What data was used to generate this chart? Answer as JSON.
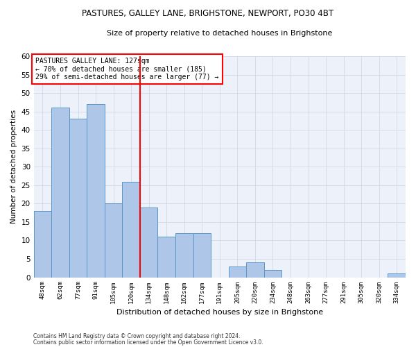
{
  "title": "PASTURES, GALLEY LANE, BRIGHSTONE, NEWPORT, PO30 4BT",
  "subtitle": "Size of property relative to detached houses in Brighstone",
  "xlabel": "Distribution of detached houses by size in Brighstone",
  "ylabel": "Number of detached properties",
  "categories": [
    "48sqm",
    "62sqm",
    "77sqm",
    "91sqm",
    "105sqm",
    "120sqm",
    "134sqm",
    "148sqm",
    "162sqm",
    "177sqm",
    "191sqm",
    "205sqm",
    "220sqm",
    "234sqm",
    "248sqm",
    "263sqm",
    "277sqm",
    "291sqm",
    "305sqm",
    "320sqm",
    "334sqm"
  ],
  "values": [
    18,
    46,
    43,
    47,
    20,
    26,
    19,
    11,
    12,
    12,
    0,
    3,
    4,
    2,
    0,
    0,
    0,
    0,
    0,
    0,
    1
  ],
  "bar_color": "#aec6e8",
  "bar_edge_color": "#5a96c8",
  "grid_color": "#d0d8e8",
  "background_color": "#edf2fa",
  "vline_x": 5.5,
  "vline_color": "red",
  "annotation_text": "PASTURES GALLEY LANE: 127sqm\n← 70% of detached houses are smaller (185)\n29% of semi-detached houses are larger (77) →",
  "annotation_box_color": "white",
  "annotation_box_edge_color": "red",
  "ylim": [
    0,
    60
  ],
  "yticks": [
    0,
    5,
    10,
    15,
    20,
    25,
    30,
    35,
    40,
    45,
    50,
    55,
    60
  ],
  "footer1": "Contains HM Land Registry data © Crown copyright and database right 2024.",
  "footer2": "Contains public sector information licensed under the Open Government Licence v3.0."
}
